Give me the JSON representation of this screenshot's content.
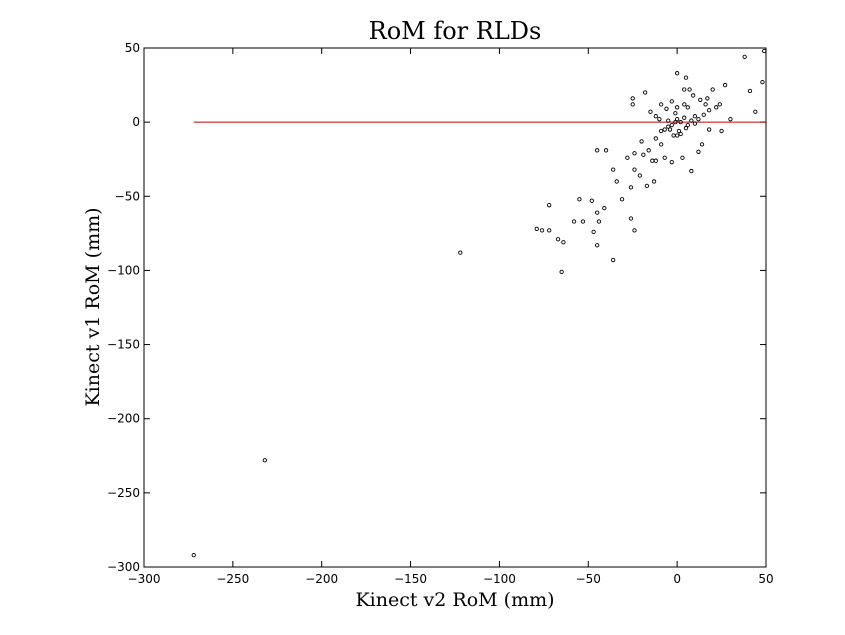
{
  "chart_data": {
    "type": "scatter",
    "title": "RoM for RLDs",
    "xlabel": "Kinect v2 RoM (mm)",
    "ylabel": "Kinect v1 RoM (mm)",
    "xlim": [
      -300,
      50
    ],
    "ylim": [
      -300,
      50
    ],
    "xticks": [
      -300,
      -250,
      -200,
      -150,
      -100,
      -50,
      0,
      50
    ],
    "yticks": [
      -300,
      -250,
      -200,
      -150,
      -100,
      -50,
      0,
      50
    ],
    "xtick_labels": [
      "−300",
      "−250",
      "−200",
      "−150",
      "−100",
      "−50",
      "0",
      "50"
    ],
    "ytick_labels": [
      "−300",
      "−250",
      "−200",
      "−150",
      "−100",
      "−50",
      "0",
      "50"
    ],
    "grid": false,
    "reference_line": {
      "x": [
        -272,
        50
      ],
      "y": [
        0,
        0
      ],
      "color": "#c00000"
    },
    "marker_color": "#000000",
    "points": [
      [
        -272,
        -292
      ],
      [
        -232,
        -228
      ],
      [
        -122,
        -88
      ],
      [
        -65,
        -101
      ],
      [
        -36,
        -93
      ],
      [
        -45,
        -83
      ],
      [
        -64,
        -81
      ],
      [
        -67,
        -79
      ],
      [
        -79,
        -72
      ],
      [
        -76,
        -73
      ],
      [
        -72,
        -73
      ],
      [
        -24,
        -73
      ],
      [
        -47,
        -74
      ],
      [
        -44,
        -67
      ],
      [
        -58,
        -67
      ],
      [
        -26,
        -65
      ],
      [
        -45,
        -61
      ],
      [
        -41,
        -58
      ],
      [
        -48,
        -53
      ],
      [
        -55,
        -52
      ],
      [
        -72,
        -56
      ],
      [
        -26,
        -44
      ],
      [
        -17,
        -43
      ],
      [
        -34,
        -40
      ],
      [
        -21,
        -36
      ],
      [
        -13,
        -40
      ],
      [
        -24,
        -32
      ],
      [
        -36,
        -32
      ],
      [
        -45,
        -19
      ],
      [
        -40,
        -19
      ],
      [
        -14,
        -26
      ],
      [
        -3,
        -27
      ],
      [
        -24,
        -21
      ],
      [
        -16,
        -19
      ],
      [
        -9,
        -15
      ],
      [
        -20,
        -13
      ],
      [
        -12,
        -11
      ],
      [
        -7,
        -5
      ],
      [
        -5,
        -3
      ],
      [
        -2,
        -9
      ],
      [
        0,
        -9
      ],
      [
        2,
        -8
      ],
      [
        5,
        -4
      ],
      [
        -9,
        -6
      ],
      [
        -12,
        4
      ],
      [
        -10,
        2
      ],
      [
        -5,
        1
      ],
      [
        -3,
        -2
      ],
      [
        -1,
        0
      ],
      [
        0,
        2
      ],
      [
        2,
        0
      ],
      [
        4,
        3
      ],
      [
        6,
        -2
      ],
      [
        8,
        1
      ],
      [
        10,
        4
      ],
      [
        12,
        2
      ],
      [
        -6,
        9
      ],
      [
        -9,
        12
      ],
      [
        -3,
        14
      ],
      [
        0,
        10
      ],
      [
        4,
        12
      ],
      [
        7,
        22
      ],
      [
        9,
        18
      ],
      [
        4,
        22
      ],
      [
        13,
        15
      ],
      [
        16,
        12
      ],
      [
        18,
        8
      ],
      [
        15,
        5
      ],
      [
        17,
        16
      ],
      [
        24,
        12
      ],
      [
        27,
        25
      ],
      [
        20,
        22
      ],
      [
        22,
        10
      ],
      [
        -18,
        20
      ],
      [
        -25,
        16
      ],
      [
        -25,
        12
      ],
      [
        0,
        33
      ],
      [
        5,
        30
      ],
      [
        38,
        44
      ],
      [
        41,
        21
      ],
      [
        48,
        27
      ],
      [
        49,
        48
      ],
      [
        44,
        7
      ],
      [
        30,
        2
      ],
      [
        25,
        -6
      ],
      [
        18,
        -5
      ],
      [
        14,
        -15
      ],
      [
        12,
        -20
      ],
      [
        8,
        -33
      ],
      [
        -7,
        -24
      ],
      [
        -12,
        -26
      ],
      [
        3,
        -24
      ],
      [
        -1,
        6
      ],
      [
        1,
        -6
      ],
      [
        -4,
        -5
      ],
      [
        6,
        10
      ],
      [
        10,
        -1
      ],
      [
        -15,
        7
      ],
      [
        -19,
        -22
      ],
      [
        -28,
        -24
      ],
      [
        -31,
        -52
      ],
      [
        -53,
        -67
      ]
    ]
  }
}
